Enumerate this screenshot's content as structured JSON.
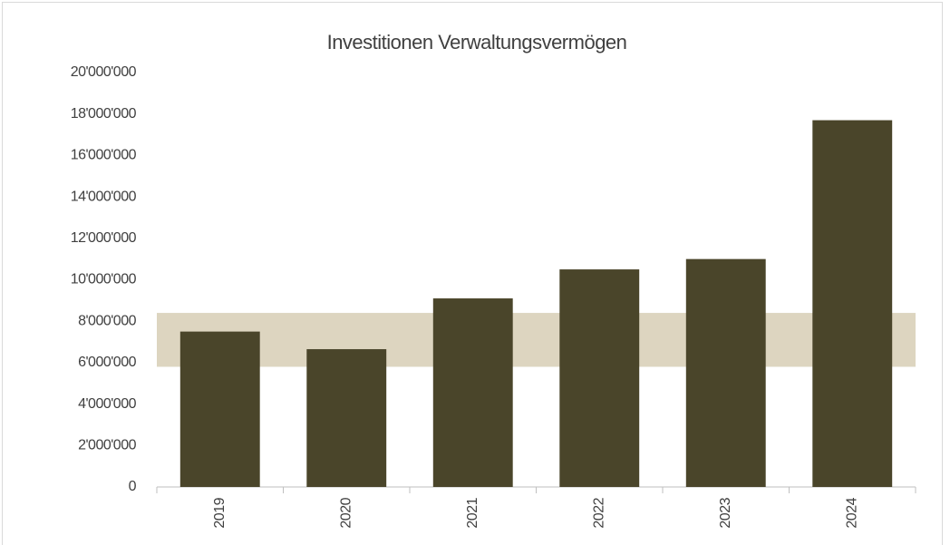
{
  "chart_data": {
    "type": "bar",
    "title": "Investitionen Verwaltungsvermögen",
    "categories": [
      "2019",
      "2020",
      "2021",
      "2022",
      "2023",
      "2024"
    ],
    "values": [
      7500000,
      6650000,
      9100000,
      10500000,
      11000000,
      17700000
    ],
    "color": "#4a452a",
    "band": [
      5800000,
      8400000
    ],
    "band_color": "#ddd5c0",
    "ylim": [
      0,
      20000000
    ],
    "yticks": [
      {
        "value": 0,
        "label": "0"
      },
      {
        "value": 2000000,
        "label": "2'000'000"
      },
      {
        "value": 4000000,
        "label": "4'000'000"
      },
      {
        "value": 6000000,
        "label": "6'000'000"
      },
      {
        "value": 8000000,
        "label": "8'000'000"
      },
      {
        "value": 10000000,
        "label": "10'000'000"
      },
      {
        "value": 12000000,
        "label": "12'000'000"
      },
      {
        "value": 14000000,
        "label": "14'000'000"
      },
      {
        "value": 16000000,
        "label": "16'000'000"
      },
      {
        "value": 18000000,
        "label": "18'000'000"
      },
      {
        "value": 20000000,
        "label": "20'000'000"
      }
    ],
    "grid": false
  }
}
